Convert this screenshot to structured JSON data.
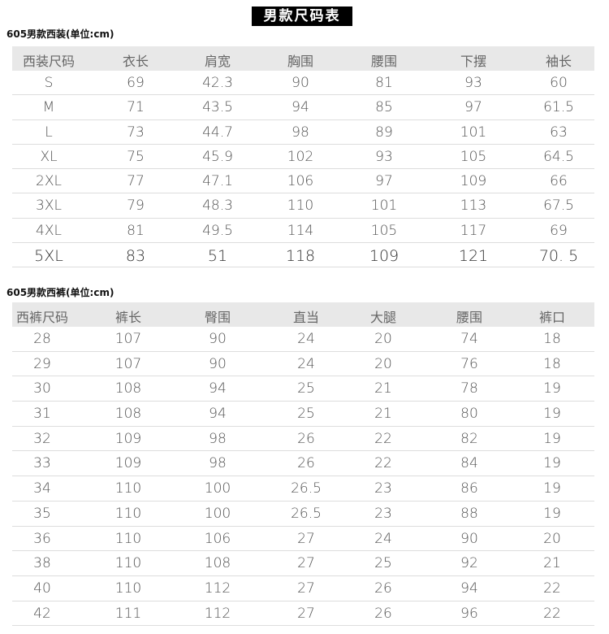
{
  "title": "男款尺码表",
  "suit": {
    "section_title": "605男款西装(单位:cm)",
    "headers": [
      "西装尺码",
      "衣长",
      "肩宽",
      "胸围",
      "腰围",
      "下摆",
      "袖长"
    ],
    "rows": [
      [
        "S",
        "69",
        "42.3",
        "90",
        "81",
        "93",
        "60"
      ],
      [
        "M",
        "71",
        "43.5",
        "94",
        "85",
        "97",
        "61.5"
      ],
      [
        "L",
        "73",
        "44.7",
        "98",
        "89",
        "101",
        "63"
      ],
      [
        "XL",
        "75",
        "45.9",
        "102",
        "93",
        "105",
        "64.5"
      ],
      [
        "2XL",
        "77",
        "47.1",
        "106",
        "97",
        "109",
        "66"
      ],
      [
        "3XL",
        "79",
        "48.3",
        "110",
        "101",
        "113",
        "67.5"
      ],
      [
        "4XL",
        "81",
        "49.5",
        "114",
        "105",
        "117",
        "69"
      ],
      [
        "5XL",
        "83",
        "51",
        "118",
        "109",
        "121",
        "70. 5"
      ]
    ]
  },
  "pants": {
    "section_title": "605男款西裤(单位:cm)",
    "headers": [
      "西裤尺码",
      "裤长",
      "臀围",
      "直当",
      "大腿",
      "腰围",
      "裤口"
    ],
    "rows": [
      [
        "28",
        "107",
        "90",
        "24",
        "20",
        "74",
        "18"
      ],
      [
        "29",
        "107",
        "90",
        "24",
        "20",
        "76",
        "18"
      ],
      [
        "30",
        "108",
        "94",
        "25",
        "21",
        "78",
        "19"
      ],
      [
        "31",
        "108",
        "94",
        "25",
        "21",
        "80",
        "19"
      ],
      [
        "32",
        "109",
        "98",
        "26",
        "22",
        "82",
        "19"
      ],
      [
        "33",
        "109",
        "98",
        "26",
        "22",
        "84",
        "19"
      ],
      [
        "34",
        "110",
        "100",
        "26.5",
        "23",
        "86",
        "19"
      ],
      [
        "35",
        "110",
        "100",
        "26.5",
        "23",
        "88",
        "19"
      ],
      [
        "36",
        "110",
        "106",
        "27",
        "24",
        "90",
        "20"
      ],
      [
        "38",
        "110",
        "108",
        "27",
        "25",
        "92",
        "21"
      ],
      [
        "40",
        "110",
        "112",
        "27",
        "26",
        "94",
        "22"
      ],
      [
        "42",
        "111",
        "112",
        "27",
        "26",
        "96",
        "22"
      ]
    ]
  }
}
